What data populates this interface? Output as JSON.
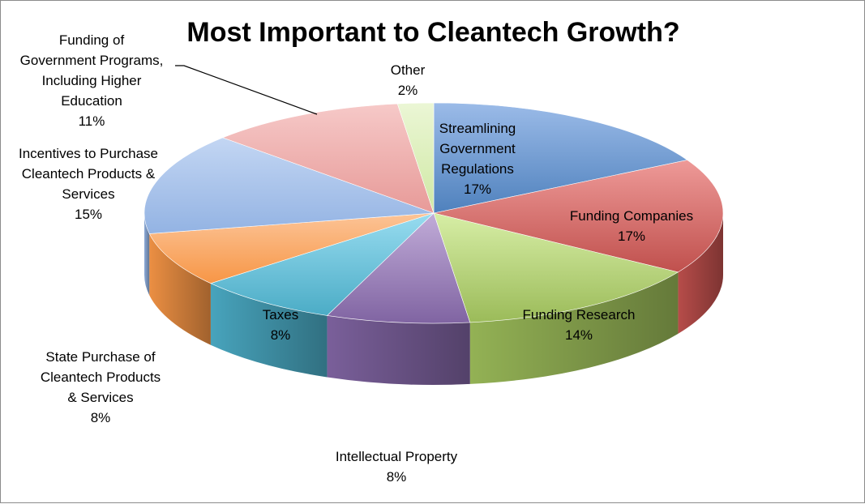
{
  "chart_data": {
    "type": "pie",
    "style": "3d",
    "title": "Most Important to Cleantech Growth?",
    "slices": [
      {
        "label": "Streamlining Government Regulations",
        "lines": [
          "Streamlining",
          "Government",
          "Regulations"
        ],
        "value": 17,
        "pct_label": "17%",
        "color": "#4f81bd",
        "light": "#9bbbe8"
      },
      {
        "label": "Funding Companies",
        "lines": [
          "Funding Companies"
        ],
        "value": 17,
        "pct_label": "17%",
        "color": "#c0504d",
        "light": "#ee9a98"
      },
      {
        "label": "Funding Research",
        "lines": [
          "Funding Research"
        ],
        "value": 14,
        "pct_label": "14%",
        "color": "#9bbb59",
        "light": "#d7eea6"
      },
      {
        "label": "Intellectual Property",
        "lines": [
          "Intellectual Property"
        ],
        "value": 8,
        "pct_label": "8%",
        "color": "#8064a2",
        "light": "#c1acd8"
      },
      {
        "label": "Taxes",
        "lines": [
          "Taxes"
        ],
        "value": 8,
        "pct_label": "8%",
        "color": "#4bacc6",
        "light": "#98dcf0"
      },
      {
        "label": "State Purchase of Cleantech Products & Services",
        "lines": [
          "State Purchase of",
          "Cleantech Products",
          "& Services"
        ],
        "value": 8,
        "pct_label": "8%",
        "color": "#f79646",
        "light": "#fcc497"
      },
      {
        "label": "Incentives to Purchase Cleantech Products & Services",
        "lines": [
          "Incentives to Purchase",
          "Cleantech Products &",
          "Services"
        ],
        "value": 15,
        "pct_label": "15%",
        "color": "#93b3e3",
        "light": "#c3d6f3"
      },
      {
        "label": "Funding of Government Programs, Including Higher Education",
        "lines": [
          "Funding of",
          "Government Programs,",
          "Including Higher",
          "Education"
        ],
        "value": 11,
        "pct_label": "11%",
        "color": "#e79a98",
        "light": "#f6c9c8"
      },
      {
        "label": "Other",
        "lines": [
          "Other"
        ],
        "value": 2,
        "pct_label": "2%",
        "color": "#cfe8a4",
        "light": "#ebf6d5"
      }
    ]
  }
}
